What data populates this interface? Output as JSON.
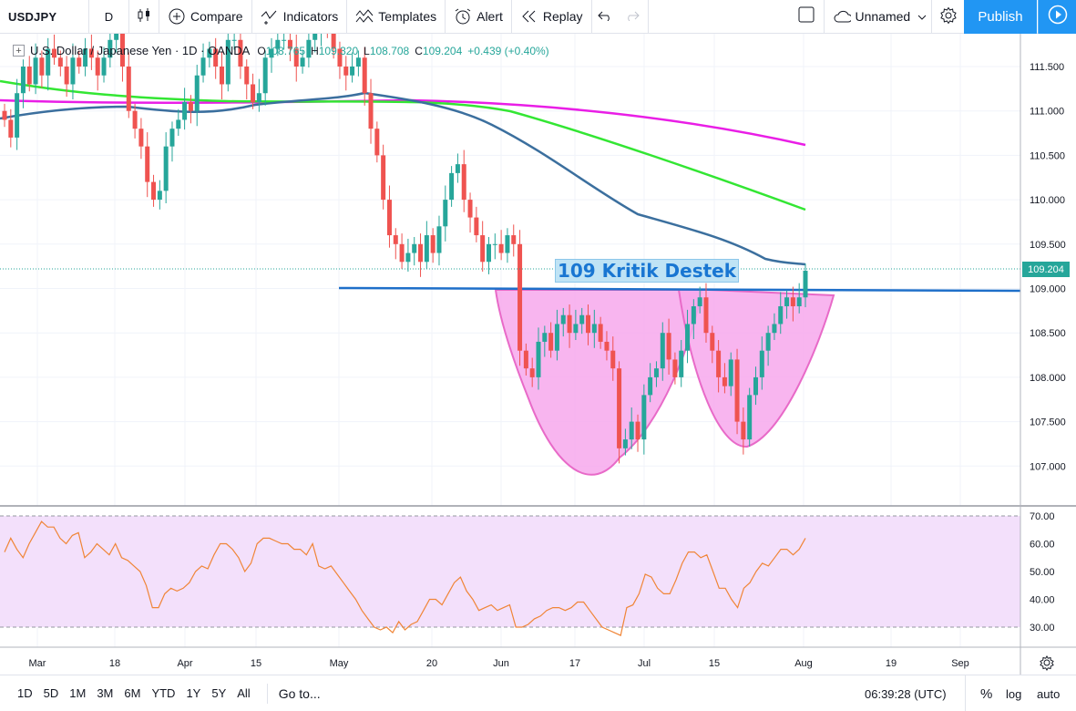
{
  "toolbar": {
    "symbol": "USDJPY",
    "interval": "D",
    "compare": "Compare",
    "indicators": "Indicators",
    "templates": "Templates",
    "alert": "Alert",
    "replay": "Replay",
    "layout_name": "Unnamed",
    "publish": "Publish"
  },
  "legend": {
    "title": "U.S. Dollar / Japanese Yen · 1D · OANDA",
    "open_label": "O",
    "open": "108.765",
    "high_label": "H",
    "high": "109.320",
    "low_label": "L",
    "low": "108.708",
    "close_label": "C",
    "close": "109.204",
    "change": "+0.439 (+0.40%)"
  },
  "annotation": "109 Kritik Destek",
  "last_price": "109.204",
  "price_axis": [
    "111.500",
    "111.000",
    "110.500",
    "110.000",
    "109.500",
    "109.000",
    "108.500",
    "108.000",
    "107.500",
    "107.000"
  ],
  "rsi_axis": [
    "70.00",
    "60.00",
    "50.00",
    "40.00",
    "30.00"
  ],
  "time_axis": [
    "Mar",
    "18",
    "Apr",
    "15",
    "May",
    "20",
    "Jun",
    "17",
    "Jul",
    "15",
    "Aug",
    "19",
    "Sep"
  ],
  "bottombar": {
    "ranges": [
      "1D",
      "5D",
      "1M",
      "3M",
      "6M",
      "YTD",
      "1Y",
      "5Y",
      "All"
    ],
    "goto": "Go to...",
    "time": "06:39:28 (UTC)",
    "percent": "%",
    "log": "log",
    "auto": "auto"
  },
  "colors": {
    "up": "#26a69a",
    "down": "#ef5350",
    "ma_magenta": "#e91ee6",
    "ma_green": "#33e633",
    "ma_blue": "#3b6f9e",
    "support_line": "#1e6fc9",
    "cup_fill": "#f7a8ec",
    "rsi_line": "#f08537",
    "rsi_band": "#f3e0fb",
    "accent": "#2196f3"
  },
  "icons": [
    "candles-icon",
    "plus-circle-icon",
    "indicators-icon",
    "templates-icon",
    "alarm-clock-icon",
    "replay-icon",
    "undo-icon",
    "redo-icon",
    "square-icon",
    "cloud-icon",
    "chevron-down-icon",
    "gear-icon",
    "fullscreen-icon",
    "camera-icon",
    "play-icon",
    "settings-icon"
  ]
}
